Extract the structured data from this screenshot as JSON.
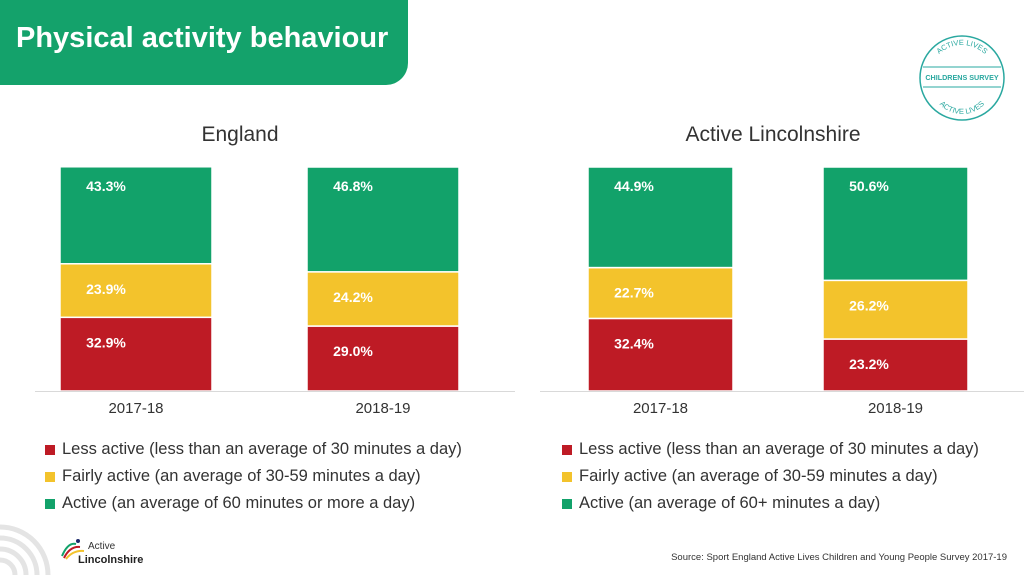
{
  "header": {
    "title": "Physical activity behaviour"
  },
  "badge": {
    "top_text": "ACTIVE LIVES",
    "middle_text": "CHILDRENS SURVEY",
    "bottom_text": "ACTIVE LIVES"
  },
  "colors": {
    "header_green": "#14a26b",
    "less_active": "#be1b25",
    "fairly_active": "#f3c32c",
    "active": "#12a26a"
  },
  "chart_data": [
    {
      "type": "bar",
      "stacked": true,
      "title": "England",
      "categories": [
        "2017-18",
        "2018-19"
      ],
      "series": [
        {
          "name": "Less active (less than an average of 30 minutes a day)",
          "color": "#be1b25",
          "values": [
            32.9,
            29.0
          ],
          "labels": [
            "32.9%",
            "29.0%"
          ]
        },
        {
          "name": "Fairly active (an average of 30-59 minutes a day)",
          "color": "#f3c32c",
          "values": [
            23.9,
            24.2
          ],
          "labels": [
            "23.9%",
            "24.2%"
          ]
        },
        {
          "name": "Active (an average of 60 minutes or more a day)",
          "color": "#12a26a",
          "values": [
            43.3,
            46.8
          ],
          "labels": [
            "43.3%",
            "46.8%"
          ]
        }
      ],
      "ylim": [
        0,
        100
      ],
      "grid": false,
      "legend_position": "bottom"
    },
    {
      "type": "bar",
      "stacked": true,
      "title": "Active Lincolnshire",
      "categories": [
        "2017-18",
        "2018-19"
      ],
      "series": [
        {
          "name": "Less active (less than an average of 30 minutes a day)",
          "color": "#be1b25",
          "values": [
            32.4,
            23.2
          ],
          "labels": [
            "32.4%",
            "23.2%"
          ]
        },
        {
          "name": "Fairly active (an average of 30-59 minutes a day)",
          "color": "#f3c32c",
          "values": [
            22.7,
            26.2
          ],
          "labels": [
            "22.7%",
            "26.2%"
          ]
        },
        {
          "name": "Active (an average of 60+ minutes a day)",
          "color": "#12a26a",
          "values": [
            44.9,
            50.6
          ],
          "labels": [
            "44.9%",
            "50.6%"
          ]
        }
      ],
      "ylim": [
        0,
        100
      ],
      "grid": false,
      "legend_position": "bottom"
    }
  ],
  "footer": {
    "logo_top": "Active",
    "logo_bottom": "Lincolnshire",
    "source": "Source: Sport England Active Lives Children and Young People Survey 2017-19"
  }
}
